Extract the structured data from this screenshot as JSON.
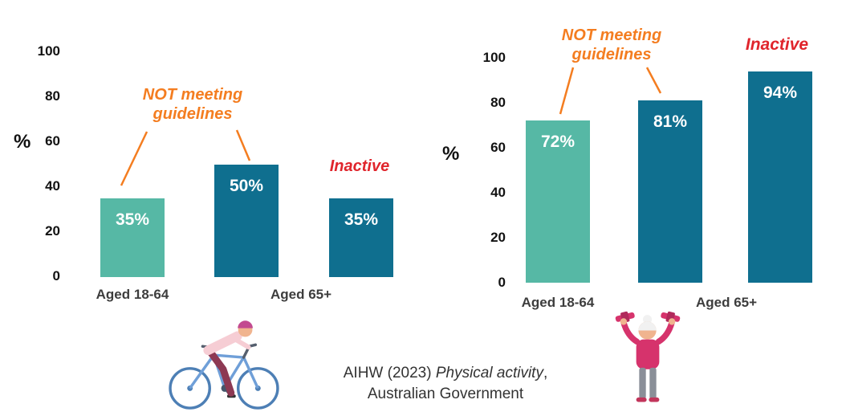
{
  "colors": {
    "light_teal": "#56b8a5",
    "dark_teal": "#0f6f8f",
    "orange": "#f47d20",
    "red": "#e0252c"
  },
  "chart_data": [
    {
      "type": "bar",
      "title": "",
      "ylabel": "%",
      "ylim": [
        0,
        100
      ],
      "yticks": [
        "100",
        "80",
        "60",
        "40",
        "20",
        "0"
      ],
      "x_labels": [
        "Aged 18-64",
        "Aged 65+"
      ],
      "bars": [
        {
          "group": "Aged 18-64",
          "series": "NOT meeting guidelines",
          "value": 35,
          "label": "35%",
          "color": "#56b8a5"
        },
        {
          "group": "Aged 65+",
          "series": "NOT meeting guidelines",
          "value": 50,
          "label": "50%",
          "color": "#0f6f8f"
        },
        {
          "group": "Aged 65+",
          "series": "Inactive",
          "value": 35,
          "label": "35%",
          "color": "#0f6f8f"
        }
      ],
      "annotations": {
        "not_meeting": "NOT meeting guidelines",
        "inactive": "Inactive"
      },
      "legend_position": "none",
      "grid": false
    },
    {
      "type": "bar",
      "title": "",
      "ylabel": "%",
      "ylim": [
        0,
        100
      ],
      "yticks": [
        "100",
        "80",
        "60",
        "40",
        "20",
        "0"
      ],
      "x_labels": [
        "Aged 18-64",
        "Aged 65+"
      ],
      "bars": [
        {
          "group": "Aged 18-64",
          "series": "NOT meeting guidelines",
          "value": 72,
          "label": "72%",
          "color": "#56b8a5"
        },
        {
          "group": "Aged 65+",
          "series": "NOT meeting guidelines",
          "value": 81,
          "label": "81%",
          "color": "#0f6f8f"
        },
        {
          "group": "Aged 65+",
          "series": "Inactive",
          "value": 94,
          "label": "94%",
          "color": "#0f6f8f"
        }
      ],
      "annotations": {
        "not_meeting": "NOT meeting guidelines",
        "inactive": "Inactive"
      },
      "legend_position": "none",
      "grid": false
    }
  ],
  "source": {
    "prefix": "AIHW (2023) ",
    "title_italic": "Physical activity",
    "suffix": ",",
    "line2": "Australian Government"
  },
  "illustrations": {
    "left": "cyclist",
    "right": "person lifting dumbbells"
  }
}
